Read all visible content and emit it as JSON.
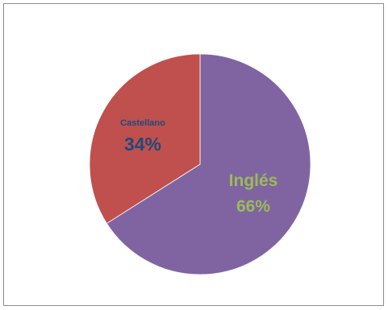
{
  "chart_data": {
    "type": "pie",
    "title": "",
    "slices": [
      {
        "label": "Inglés",
        "value": 66,
        "value_label": "66%",
        "color": "#8064a2",
        "label_color": "#9bbb59"
      },
      {
        "label": "Castellano",
        "value": 34,
        "value_label": "34%",
        "color": "#c0504d",
        "label_color": "#1f497d"
      }
    ]
  }
}
